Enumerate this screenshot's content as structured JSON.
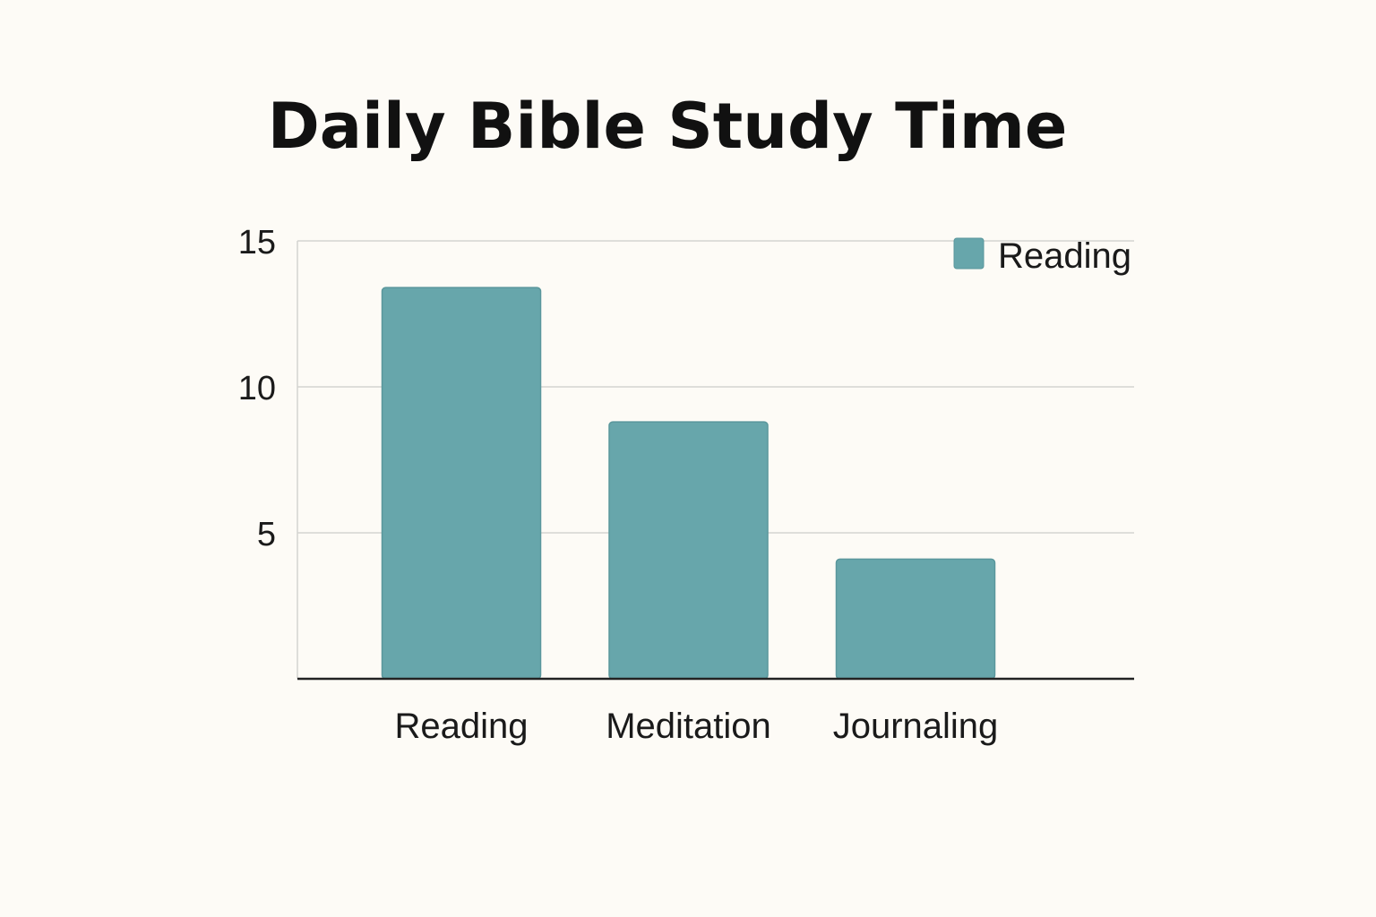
{
  "chart_data": {
    "type": "bar",
    "title": "Daily Bible Study Time",
    "xlabel": "",
    "ylabel": "",
    "categories": [
      "Reading",
      "Meditation",
      "Journaling"
    ],
    "series": [
      {
        "name": "Reading",
        "values": [
          13.4,
          8.8,
          4.1
        ]
      }
    ],
    "ylim": [
      0,
      15
    ],
    "yticks": [
      5,
      10,
      15
    ],
    "grid": true,
    "legend": "top-right"
  },
  "colors": {
    "bar": "#67a6ab",
    "bar_stroke": "#5a979c",
    "grid": "#d4d4d0",
    "axis": "#222222",
    "background": "#fdfbf6"
  }
}
